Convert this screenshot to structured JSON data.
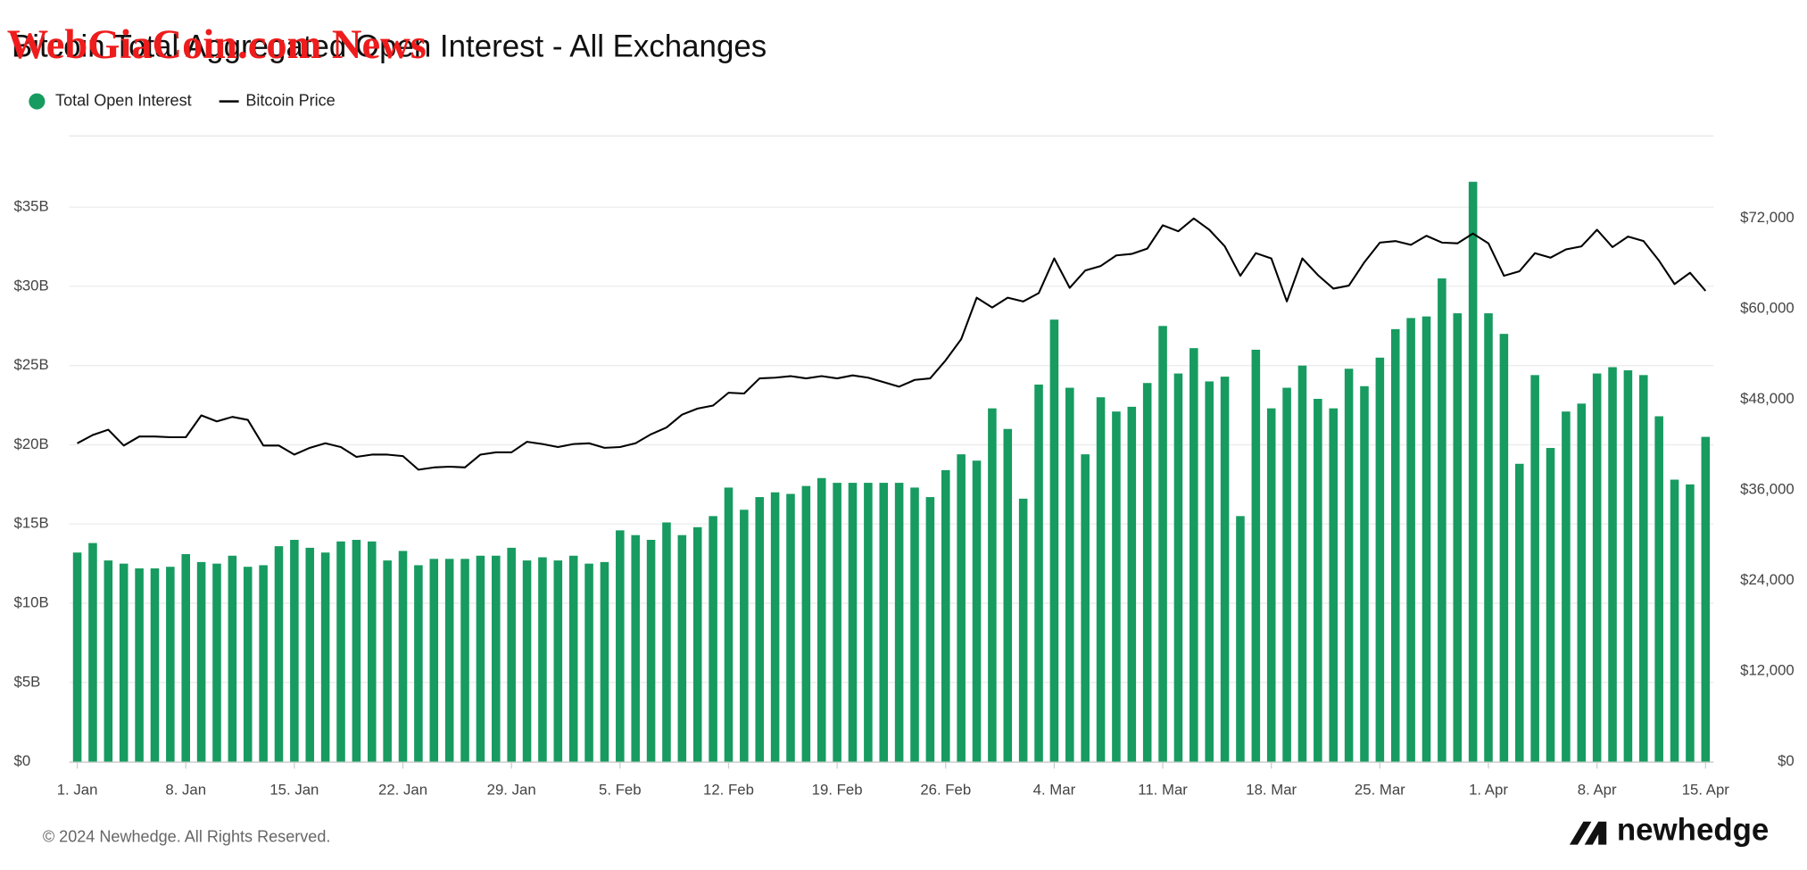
{
  "chart_data": {
    "type": "bar",
    "title": "Bitcoin Total Aggregated Open Interest - All Exchanges",
    "watermark": "WebGiaCoin.com News",
    "footer": "© 2024 Newhedge. All Rights Reserved.",
    "brand": "newhedge",
    "categories": [
      "1. Jan",
      null,
      null,
      null,
      null,
      null,
      null,
      "8. Jan",
      null,
      null,
      null,
      null,
      null,
      null,
      "15. Jan",
      null,
      null,
      null,
      null,
      null,
      null,
      "22. Jan",
      null,
      null,
      null,
      null,
      null,
      null,
      "29. Jan",
      null,
      null,
      null,
      null,
      null,
      null,
      "5. Feb",
      null,
      null,
      null,
      null,
      null,
      null,
      "12. Feb",
      null,
      null,
      null,
      null,
      null,
      null,
      "19. Feb",
      null,
      null,
      null,
      null,
      null,
      null,
      "26. Feb",
      null,
      null,
      null,
      null,
      null,
      null,
      "4. Mar",
      null,
      null,
      null,
      null,
      null,
      null,
      "11. Mar",
      null,
      null,
      null,
      null,
      null,
      null,
      "18. Mar",
      null,
      null,
      null,
      null,
      null,
      null,
      "25. Mar",
      null,
      null,
      null,
      null,
      null,
      null,
      "1. Apr",
      null,
      null,
      null,
      null,
      null,
      null,
      "8. Apr",
      null,
      null,
      null,
      null,
      null,
      null,
      "15. Apr"
    ],
    "series": [
      {
        "name": "Total Open Interest",
        "type": "bar",
        "color": "#179b60",
        "values": [
          13.2,
          13.8,
          12.7,
          12.5,
          12.2,
          12.2,
          12.3,
          13.1,
          12.6,
          12.5,
          13.0,
          12.3,
          12.4,
          13.6,
          14.0,
          13.5,
          13.2,
          13.9,
          14.0,
          13.9,
          12.7,
          13.3,
          12.4,
          12.8,
          12.8,
          12.8,
          13.0,
          13.0,
          13.5,
          12.7,
          12.9,
          12.7,
          13.0,
          12.5,
          12.6,
          14.6,
          14.3,
          14.0,
          15.1,
          14.3,
          14.8,
          15.5,
          17.3,
          15.9,
          16.7,
          17.0,
          16.9,
          17.4,
          17.9,
          17.6,
          17.6,
          17.6,
          17.6,
          17.6,
          17.3,
          16.7,
          18.4,
          19.4,
          19.0,
          22.3,
          21.0,
          16.6,
          23.8,
          27.9,
          23.6,
          19.4,
          23.0,
          22.1,
          22.4,
          23.9,
          27.5,
          24.5,
          26.1,
          24.0,
          24.3,
          15.5,
          26.0,
          22.3,
          23.6,
          25.0,
          22.9,
          22.3,
          24.8,
          23.7,
          25.5,
          27.3,
          28.0,
          28.1,
          30.5,
          28.3,
          36.6,
          28.3,
          27.0,
          18.8,
          24.4,
          19.8,
          22.1,
          22.6,
          24.5,
          24.9,
          24.7,
          24.4,
          21.8,
          17.8,
          17.5,
          20.5
        ]
      },
      {
        "name": "Bitcoin Price",
        "type": "line",
        "axis": "y2",
        "color": "#000000",
        "values": [
          42200,
          43300,
          44000,
          41900,
          43100,
          43100,
          43000,
          43000,
          45900,
          45100,
          45700,
          45300,
          41900,
          41900,
          40700,
          41600,
          42200,
          41700,
          40400,
          40700,
          40700,
          40500,
          38700,
          39000,
          39100,
          39000,
          40700,
          41000,
          41000,
          42400,
          42100,
          41700,
          42100,
          42200,
          41600,
          41700,
          42200,
          43400,
          44300,
          46000,
          46800,
          47200,
          48900,
          48800,
          50800,
          50900,
          51100,
          50800,
          51100,
          50800,
          51200,
          50900,
          50300,
          49700,
          50600,
          50800,
          53200,
          56000,
          61500,
          60200,
          61500,
          61000,
          62100,
          66700,
          62800,
          65100,
          65700,
          67100,
          67300,
          68000,
          71100,
          70300,
          72000,
          70500,
          68300,
          64400,
          67400,
          66700,
          61000,
          66700,
          64500,
          62700,
          63100,
          66200,
          68800,
          69000,
          68500,
          69700,
          68800,
          68700,
          70000,
          68700,
          64400,
          65000,
          67400,
          66800,
          67900,
          68300,
          70500,
          68200,
          69600,
          69000,
          66400,
          63300,
          64800,
          62400
        ]
      }
    ],
    "ylim": [
      0,
      40
    ],
    "yticks": [
      {
        "value": 0,
        "label": "$0"
      },
      {
        "value": 5,
        "label": "$5B"
      },
      {
        "value": 10,
        "label": "$10B"
      },
      {
        "value": 15,
        "label": "$15B"
      },
      {
        "value": 20,
        "label": "$20B"
      },
      {
        "value": 25,
        "label": "$25B"
      },
      {
        "value": 30,
        "label": "$30B"
      },
      {
        "value": 35,
        "label": "$35B"
      }
    ],
    "y2lim": [
      0,
      84000
    ],
    "y2ticks": [
      {
        "value": 0,
        "label": "$0"
      },
      {
        "value": 12000,
        "label": "$12,000"
      },
      {
        "value": 24000,
        "label": "$24,000"
      },
      {
        "value": 36000,
        "label": "$36,000"
      },
      {
        "value": 48000,
        "label": "$48,000"
      },
      {
        "value": 60000,
        "label": "$60,000"
      },
      {
        "value": 72000,
        "label": "$72,000"
      }
    ],
    "grid": true,
    "legend": "top-left"
  }
}
